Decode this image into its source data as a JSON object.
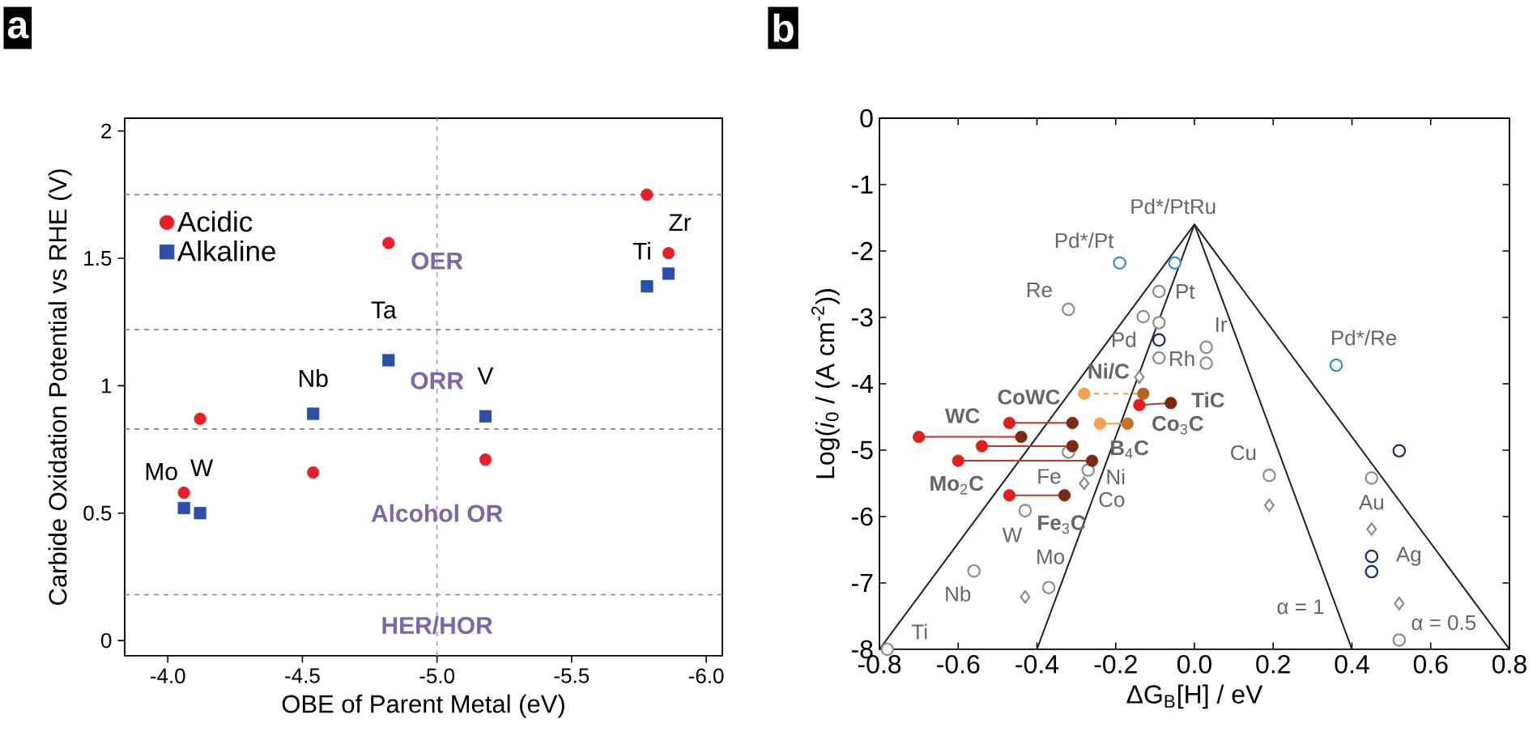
{
  "chart_data": [
    {
      "type": "scatter",
      "xlabel": "OBE of Parent Metal (eV)",
      "ylabel": "Carbide Oxidation Potential vs RHE (V)",
      "xlim": [
        -3.84,
        -6.06
      ],
      "ylim": [
        -0.06,
        2.05
      ],
      "xticks": [
        {
          "value": -4,
          "label": "-4.0"
        },
        -4.5,
        {
          "value": -5,
          "label": "-5.0"
        },
        -5.5,
        {
          "value": -6,
          "label": "-6.0"
        }
      ],
      "yticks": [
        0,
        0.5,
        1,
        1.5,
        2
      ],
      "legend": "top left",
      "series": [
        {
          "name": "Acidic",
          "color": "#e8202a",
          "marker": "circle",
          "x": [
            -4.06,
            -4.12,
            -4.54,
            -4.82,
            -5.18,
            -5.78,
            -5.86
          ],
          "values": [
            0.58,
            0.87,
            0.66,
            1.56,
            0.71,
            1.75,
            1.52
          ],
          "colors": [
            "#e8202a",
            "#e8202a",
            "#e8202a",
            "#e8202a",
            "#e8202a",
            "#e8202a",
            "#e8202a"
          ]
        },
        {
          "name": "Alkaline",
          "color": "#2b4fa6",
          "marker": "square",
          "x": [
            -4.06,
            -4.12,
            -4.54,
            -4.82,
            -5.18,
            -5.78,
            -5.86
          ],
          "values": [
            0.52,
            0.5,
            0.89,
            1.1,
            0.88,
            1.39,
            1.44
          ],
          "colors": [
            "#2b4fa6",
            "#2b4fa6",
            "#2b4fa6",
            "#2b4fa6",
            "#2b4fa6",
            "#2b4fa6",
            "#2b4fa6"
          ]
        }
      ],
      "ref_lines": [
        {
          "axis": "y",
          "value": 1.75,
          "color": "#8a7ab8",
          "line_style": "dashed"
        },
        {
          "axis": "y",
          "value": 1.22,
          "color": "#8a7ab8",
          "line_style": "dashed"
        },
        {
          "axis": "y",
          "value": 0.83,
          "color": "#8a7ab8",
          "line_style": "dashed"
        },
        {
          "axis": "y",
          "value": 0.18,
          "color": "#8a7ab8",
          "line_style": "dashed"
        },
        {
          "axis": "x",
          "value": -5.0,
          "color": "#a898d0",
          "line_style": "dashed"
        }
      ],
      "annotations": [
        "a",
        {
          "text": "OER",
          "x": -5.0,
          "y": 1.49
        },
        {
          "text": "ORR",
          "x": -5.0,
          "y": 1.02
        },
        {
          "text": "Alcohol OR",
          "x": -5.0,
          "y": 0.5
        },
        {
          "text": "HER/HOR",
          "x": -5.0,
          "y": 0.06
        },
        {
          "text": "Mo",
          "x": -4.06,
          "y": 0.58
        },
        {
          "text": "W",
          "x": -4.12,
          "y": 0.5
        },
        {
          "text": "Nb",
          "x": -4.54,
          "y": 0.89
        },
        {
          "text": "Ta",
          "x": -4.82,
          "y": 1.1
        },
        {
          "text": "V",
          "x": -5.18,
          "y": 0.88
        },
        {
          "text": "Ti",
          "x": -5.78,
          "y": 1.39
        },
        {
          "text": "Zr",
          "x": -5.86,
          "y": 1.52
        }
      ]
    },
    {
      "type": "scatter",
      "xlabel": "ΔG$_{B}$[H] / eV",
      "ylabel": "Log(*i*$_{0}$ / (A cm$^{-2}$))",
      "xlim": [
        -0.8,
        0.8
      ],
      "ylim": [
        -8,
        0
      ],
      "xticks": [
        -0.8,
        -0.6,
        -0.4,
        -0.2,
        {
          "value": 0,
          "label": "0.0"
        },
        0.2,
        0.4,
        0.6,
        0.8
      ],
      "yticks": [
        -8,
        -7,
        -6,
        -5,
        -4,
        -3,
        -2,
        -1,
        0
      ],
      "series": [
        {
          "type": "line",
          "color": "#222222",
          "x": [
            -0.8,
            0,
            0.8
          ],
          "values": [
            -8,
            -1.6,
            -8
          ]
        },
        {
          "type": "line",
          "color": "#222222",
          "x": [
            -0.4,
            0,
            0.4
          ],
          "values": [
            -8,
            -1.6,
            -8
          ]
        },
        {
          "color": "#8c8c8c",
          "marker": "circle",
          "x": [
            -0.78,
            -0.56,
            -0.43,
            -0.37,
            -0.32,
            -0.09,
            -0.13,
            -0.09,
            -0.09,
            0.03,
            0.03,
            -0.32,
            -0.27,
            0.19,
            0.45,
            0.52
          ],
          "values": [
            -8.0,
            -6.82,
            -5.91,
            -7.07,
            -2.88,
            -2.61,
            -2.99,
            -3.08,
            -3.61,
            -3.45,
            -3.69,
            -5.03,
            -5.3,
            -5.38,
            -5.42,
            -7.86
          ]
        },
        {
          "color": "#8c8c8c",
          "marker": "diamond",
          "x": [
            -0.43,
            -0.14,
            -0.28,
            0.19,
            0.45,
            0.52
          ],
          "values": [
            -7.21,
            -3.9,
            -5.5,
            -5.83,
            -6.19,
            -7.31
          ]
        },
        {
          "color": "#3a8fd0",
          "marker": "circle",
          "x": [
            -0.19,
            -0.05,
            0.36
          ],
          "values": [
            -2.18,
            -2.18,
            -3.72
          ]
        },
        {
          "color": "#1a2a7a",
          "marker": "circle",
          "x": [
            -0.09,
            0.52,
            0.45,
            0.45
          ],
          "values": [
            -3.34,
            -5.01,
            -6.6,
            -6.83
          ]
        },
        {
          "type": "line",
          "color": "#b83a28",
          "marker": "circle",
          "x": [
            -0.7,
            -0.44
          ],
          "values": [
            -4.8,
            -4.8
          ],
          "colors": [
            "#e02020",
            "#7a2a10"
          ]
        },
        {
          "type": "line",
          "color": "#b83a28",
          "marker": "circle",
          "x": [
            -0.47,
            -0.31
          ],
          "values": [
            -4.59,
            -4.59
          ],
          "colors": [
            "#e02020",
            "#7a2a10"
          ]
        },
        {
          "type": "line",
          "color": "#b83a28",
          "marker": "circle",
          "x": [
            -0.54,
            -0.31
          ],
          "values": [
            -4.94,
            -4.94
          ],
          "colors": [
            "#e02020",
            "#7a2a10"
          ]
        },
        {
          "type": "line",
          "color": "#b83a28",
          "marker": "circle",
          "x": [
            -0.6,
            -0.26
          ],
          "values": [
            -5.16,
            -5.16
          ],
          "colors": [
            "#e02020",
            "#7a2a10"
          ]
        },
        {
          "type": "line",
          "color": "#b83a28",
          "marker": "circle",
          "x": [
            -0.47,
            -0.33
          ],
          "values": [
            -5.68,
            -5.68
          ],
          "colors": [
            "#e02020",
            "#7a2a10"
          ]
        },
        {
          "type": "line",
          "color": "#b83a28",
          "marker": "circle",
          "x": [
            -0.14,
            -0.06
          ],
          "values": [
            -4.32,
            -4.29
          ],
          "colors": [
            "#e02020",
            "#7a2a10"
          ]
        },
        {
          "type": "line",
          "color": "#f0a040",
          "marker": "circle",
          "line_style": "dashed",
          "x": [
            -0.28,
            -0.13
          ],
          "values": [
            -4.15,
            -4.15
          ],
          "colors": [
            "#f4a050",
            "#c06020"
          ]
        },
        {
          "type": "line",
          "color": "#f0a040",
          "marker": "circle",
          "x": [
            -0.24,
            -0.17
          ],
          "values": [
            -4.6,
            -4.6
          ],
          "colors": [
            "#f4a050",
            "#c87030"
          ]
        }
      ],
      "annotations": [
        "b",
        {
          "text": "Pd*/PtRu",
          "x": -0.05,
          "y": -2.18
        },
        {
          "text": "Pd*/Pt",
          "x": -0.19,
          "y": -2.18
        },
        {
          "text": "Re",
          "x": -0.32,
          "y": -2.88
        },
        {
          "text": "Pt",
          "x": -0.09,
          "y": -2.61
        },
        {
          "text": "Pd",
          "x": -0.13,
          "y": -2.99
        },
        {
          "text": "Ir",
          "x": 0.03,
          "y": -3.45
        },
        {
          "text": "Rh",
          "x": 0.03,
          "y": -3.69
        },
        {
          "text": "Pd*/Re",
          "x": 0.36,
          "y": -3.72
        },
        {
          "text": "**Ni/C**",
          "x": -0.28,
          "y": -4.15
        },
        {
          "text": "**CoWC**",
          "x": -0.47,
          "y": -4.59
        },
        {
          "text": "**TiC**",
          "x": -0.06,
          "y": -4.29
        },
        {
          "text": "**WC**",
          "x": -0.7,
          "y": -4.8
        },
        {
          "text": "**Co**$_{3}$**C**",
          "x": -0.17,
          "y": -4.6
        },
        {
          "text": "**B**$_{4}$**C**",
          "x": -0.26,
          "y": -5.16
        },
        {
          "text": "Cu",
          "x": 0.19,
          "y": -5.38
        },
        {
          "text": "Fe",
          "x": -0.32,
          "y": -5.03
        },
        {
          "text": "Ni",
          "x": -0.27,
          "y": -5.3
        },
        {
          "text": "**Mo**$_{2}$**C**",
          "x": -0.6,
          "y": -5.16
        },
        {
          "text": "Co",
          "x": -0.28,
          "y": -5.5
        },
        {
          "text": "Au",
          "x": 0.45,
          "y": -5.42
        },
        {
          "text": "**Fe**$_{3}$**C**",
          "x": -0.33,
          "y": -5.68
        },
        {
          "text": "W",
          "x": -0.43,
          "y": -5.91
        },
        {
          "text": "Mo",
          "x": -0.37,
          "y": -7.07
        },
        {
          "text": "Ag",
          "x": 0.45,
          "y": -6.6
        },
        {
          "text": "Nb",
          "x": -0.56,
          "y": -6.82
        },
        {
          "text": "Ti",
          "x": -0.78,
          "y": -8.0
        },
        {
          "text": "α = 1",
          "x": 0.36,
          "y": -7.36
        },
        {
          "text": "α = 0.5",
          "x": 0.74,
          "y": -7.5
        }
      ]
    }
  ]
}
